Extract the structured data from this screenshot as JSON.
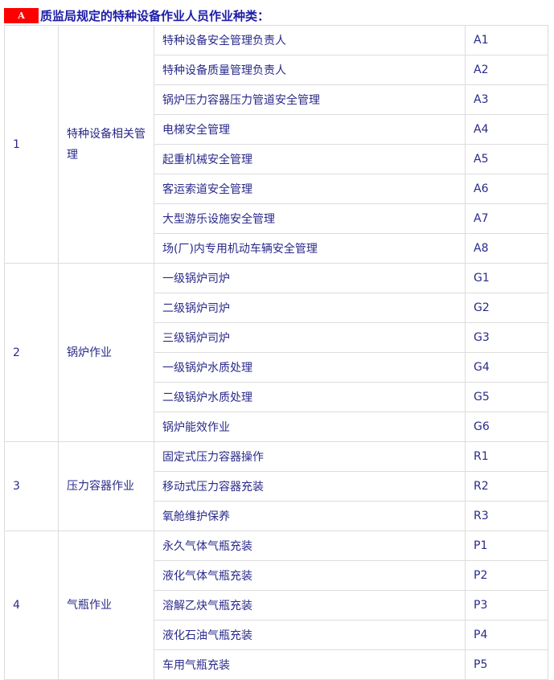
{
  "title": {
    "badge": "A",
    "text": "质监局规定的特种设备作业人员作业种类："
  },
  "groups": [
    {
      "no": "1",
      "category": "特种设备相关管理",
      "items": [
        [
          "特种设备安全管理负责人",
          "A1"
        ],
        [
          "特种设备质量管理负责人",
          "A2"
        ],
        [
          "锅炉压力容器压力管道安全管理",
          "A3"
        ],
        [
          "电梯安全管理",
          "A4"
        ],
        [
          "起重机械安全管理",
          "A5"
        ],
        [
          "客运索道安全管理",
          "A6"
        ],
        [
          "大型游乐设施安全管理",
          "A7"
        ],
        [
          "场(厂)内专用机动车辆安全管理",
          "A8"
        ]
      ]
    },
    {
      "no": "2",
      "category": "锅炉作业",
      "items": [
        [
          "一级锅炉司炉",
          "G1"
        ],
        [
          "二级锅炉司炉",
          "G2"
        ],
        [
          "三级锅炉司炉",
          "G3"
        ],
        [
          "一级锅炉水质处理",
          "G4"
        ],
        [
          "二级锅炉水质处理",
          "G5"
        ],
        [
          "锅炉能效作业",
          "G6"
        ]
      ]
    },
    {
      "no": "3",
      "category": "压力容器作业",
      "items": [
        [
          "固定式压力容器操作",
          "R1"
        ],
        [
          "移动式压力容器充装",
          "R2"
        ],
        [
          "氧舱维护保养",
          "R3"
        ]
      ]
    },
    {
      "no": "4",
      "category": "气瓶作业",
      "items": [
        [
          "永久气体气瓶充装",
          "P1"
        ],
        [
          "液化气体气瓶充装",
          "P2"
        ],
        [
          "溶解乙炔气瓶充装",
          "P3"
        ],
        [
          "液化石油气瓶充装",
          "P4"
        ],
        [
          "车用气瓶充装",
          "P5"
        ]
      ]
    }
  ]
}
